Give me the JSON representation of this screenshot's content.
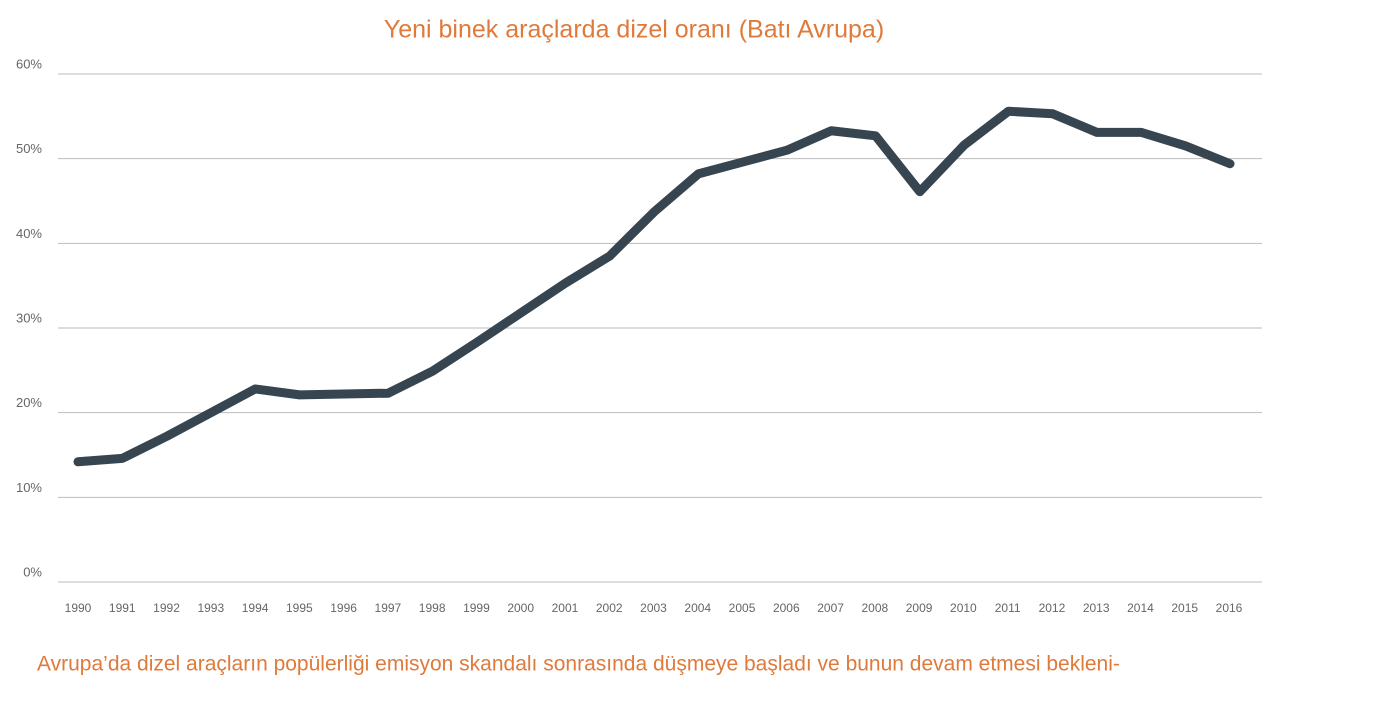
{
  "chart_data": {
    "type": "line",
    "title": "Yeni binek araçlarda dizel oranı (Batı Avrupa)",
    "caption": "Avrupa’da dizel araçların popülerliği  emisyon skandalı sonrasında düşmeye başladı ve bunun devam etmesi bekleni-",
    "categories": [
      "1990",
      "1991",
      "1992",
      "1993",
      "1994",
      "1995",
      "1996",
      "1997",
      "1998",
      "1999",
      "2000",
      "2001",
      "2002",
      "2003",
      "2004",
      "2005",
      "2006",
      "2007",
      "2008",
      "2009",
      "2010",
      "2011",
      "2012",
      "2013",
      "2014",
      "2015",
      "2016"
    ],
    "series": [
      {
        "name": "Dizel oranı",
        "color": "#36454f",
        "values": [
          14.2,
          14.6,
          17.2,
          20.0,
          22.8,
          22.1,
          22.2,
          22.3,
          24.9,
          28.3,
          31.8,
          35.3,
          38.5,
          43.7,
          48.2,
          49.6,
          51.0,
          53.3,
          52.7,
          46.1,
          51.6,
          55.6,
          55.3,
          53.1,
          53.1,
          51.5,
          49.4
        ]
      }
    ],
    "ylim": [
      0,
      60
    ],
    "yticks": [
      {
        "value": 0,
        "label": "0%"
      },
      {
        "value": 10,
        "label": "10%"
      },
      {
        "value": 20,
        "label": "20%"
      },
      {
        "value": 30,
        "label": "30%"
      },
      {
        "value": 40,
        "label": "40%"
      },
      {
        "value": 50,
        "label": "50%"
      },
      {
        "value": 60,
        "label": "60%"
      }
    ],
    "grid": true
  }
}
